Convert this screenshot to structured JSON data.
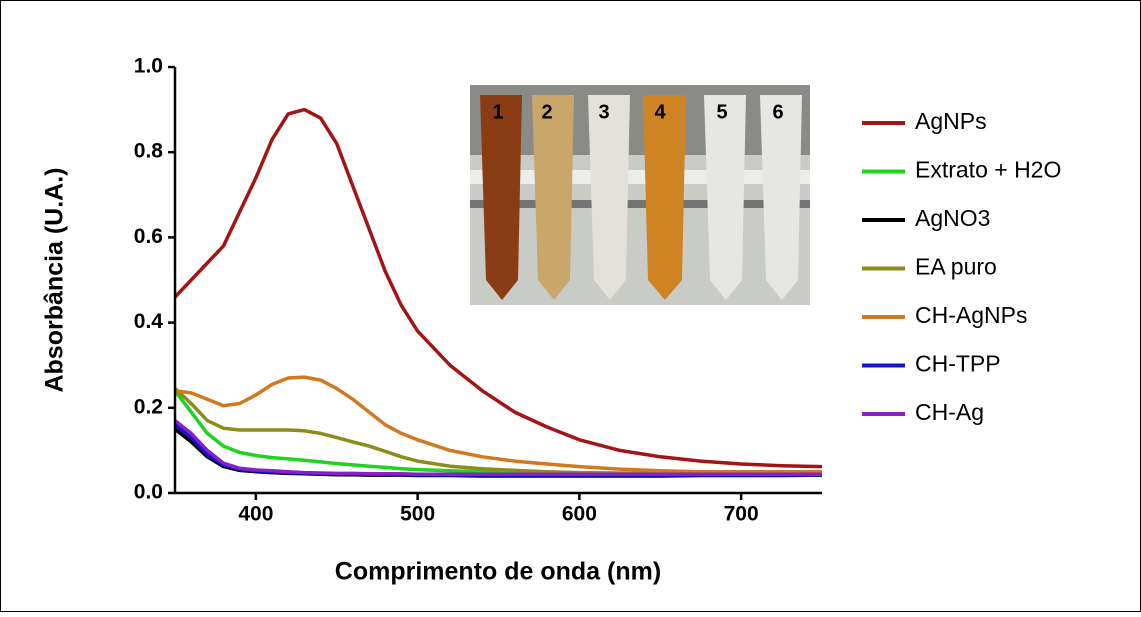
{
  "chart_data": {
    "type": "line",
    "x_label": "Comprimento de onda  (nm)",
    "y_label": "Absorbância (U.A.)",
    "x": [
      350,
      360,
      370,
      380,
      390,
      400,
      410,
      420,
      430,
      440,
      450,
      460,
      470,
      480,
      490,
      500,
      520,
      540,
      560,
      580,
      600,
      625,
      650,
      675,
      700,
      725,
      750
    ],
    "xlim": [
      350,
      750
    ],
    "xticks": [
      400,
      500,
      600,
      700
    ],
    "ylim": [
      0,
      1
    ],
    "yticks": [
      {
        "value": 0,
        "label": "0.0"
      },
      0.2,
      0.4,
      0.6,
      0.8,
      {
        "value": 1,
        "label": "1.0"
      }
    ],
    "legend": "right",
    "inset_labels": [
      "1",
      "2",
      "3",
      "4",
      "5",
      "6"
    ],
    "series": [
      {
        "name": "AgNPs",
        "color": "#a31515",
        "values": [
          0.46,
          0.5,
          0.54,
          0.58,
          0.66,
          0.74,
          0.83,
          0.89,
          0.9,
          0.88,
          0.82,
          0.72,
          0.62,
          0.52,
          0.44,
          0.38,
          0.3,
          0.24,
          0.19,
          0.155,
          0.125,
          0.1,
          0.085,
          0.075,
          0.068,
          0.064,
          0.062
        ]
      },
      {
        "name": "Extrato + H2O",
        "color": "#1ed41e",
        "values": [
          0.24,
          0.19,
          0.14,
          0.11,
          0.095,
          0.088,
          0.083,
          0.08,
          0.077,
          0.073,
          0.069,
          0.066,
          0.063,
          0.06,
          0.057,
          0.055,
          0.052,
          0.05,
          0.049,
          0.048,
          0.047,
          0.046,
          0.046,
          0.045,
          0.045,
          0.045,
          0.045
        ]
      },
      {
        "name": "AgNO3",
        "color": "#000000",
        "values": [
          0.15,
          0.12,
          0.085,
          0.062,
          0.053,
          0.05,
          0.048,
          0.046,
          0.045,
          0.044,
          0.043,
          0.043,
          0.042,
          0.042,
          0.042,
          0.041,
          0.041,
          0.04,
          0.04,
          0.04,
          0.04,
          0.04,
          0.04,
          0.041,
          0.041,
          0.041,
          0.042
        ]
      },
      {
        "name": "EA puro",
        "color": "#8c8c1a",
        "values": [
          0.245,
          0.21,
          0.17,
          0.152,
          0.148,
          0.148,
          0.148,
          0.148,
          0.146,
          0.14,
          0.13,
          0.12,
          0.11,
          0.098,
          0.085,
          0.075,
          0.063,
          0.057,
          0.053,
          0.05,
          0.048,
          0.047,
          0.046,
          0.046,
          0.045,
          0.045,
          0.045
        ]
      },
      {
        "name": "CH-AgNPs",
        "color": "#d2781e",
        "values": [
          0.24,
          0.235,
          0.22,
          0.205,
          0.21,
          0.23,
          0.255,
          0.27,
          0.272,
          0.265,
          0.245,
          0.22,
          0.19,
          0.16,
          0.14,
          0.125,
          0.1,
          0.085,
          0.075,
          0.068,
          0.062,
          0.056,
          0.052,
          0.05,
          0.05,
          0.05,
          0.05
        ]
      },
      {
        "name": "CH-TPP",
        "color": "#1414c8",
        "values": [
          0.16,
          0.13,
          0.09,
          0.066,
          0.056,
          0.052,
          0.05,
          0.048,
          0.047,
          0.046,
          0.045,
          0.045,
          0.044,
          0.044,
          0.043,
          0.043,
          0.042,
          0.042,
          0.042,
          0.042,
          0.042,
          0.042,
          0.042,
          0.042,
          0.042,
          0.042,
          0.042
        ]
      },
      {
        "name": "CH-Ag",
        "color": "#8a1ec8",
        "values": [
          0.17,
          0.14,
          0.1,
          0.07,
          0.058,
          0.054,
          0.052,
          0.05,
          0.048,
          0.047,
          0.046,
          0.046,
          0.045,
          0.045,
          0.045,
          0.044,
          0.044,
          0.044,
          0.044,
          0.044,
          0.044,
          0.044,
          0.044,
          0.044,
          0.044,
          0.044,
          0.044
        ]
      }
    ]
  }
}
